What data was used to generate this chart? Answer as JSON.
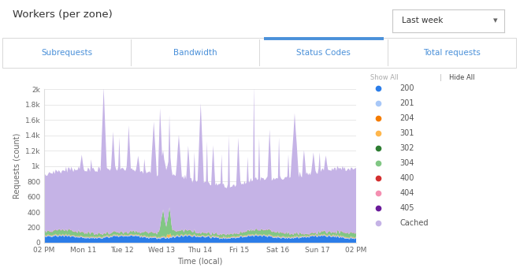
{
  "title": "Workers (per zone)",
  "dropdown_label": "Last week",
  "tabs": [
    "Subrequests",
    "Bandwidth",
    "Status Codes",
    "Total requests"
  ],
  "active_tab_idx": 2,
  "xlabel": "Time (local)",
  "ylabel": "Requests (count)",
  "ytick_vals": [
    0,
    200,
    400,
    600,
    800,
    1000,
    1200,
    1400,
    1600,
    1800,
    2000
  ],
  "ytick_labels": [
    "0",
    "200",
    "400",
    "600",
    "800",
    "1k",
    "1.2k",
    "1.4k",
    "1.6k",
    "1.8k",
    "2k"
  ],
  "xtick_labels": [
    "02 PM",
    "Mon 11",
    "Tue 12",
    "Wed 13",
    "Thu 14",
    "Fri 15",
    "Sat 16",
    "Sun 17",
    "02 PM"
  ],
  "legend_items": [
    "200",
    "201",
    "204",
    "301",
    "302",
    "304",
    "400",
    "404",
    "405",
    "Cached"
  ],
  "legend_colors": [
    "#2b7de9",
    "#a8c8f8",
    "#f57c00",
    "#ffb74d",
    "#2e7d32",
    "#81c784",
    "#d32f2f",
    "#f48fb1",
    "#6a1b9a",
    "#c5b3e6"
  ],
  "bg_color": "#ffffff",
  "plot_bg": "#ffffff",
  "grid_color": "#e8e8e8",
  "tab_active_color": "#4a90d9",
  "tab_text_color": "#4a90d9",
  "show_all_color": "#aaaaaa",
  "hide_all_color": "#444444",
  "n_points": 300,
  "ylim": [
    0,
    2000
  ]
}
